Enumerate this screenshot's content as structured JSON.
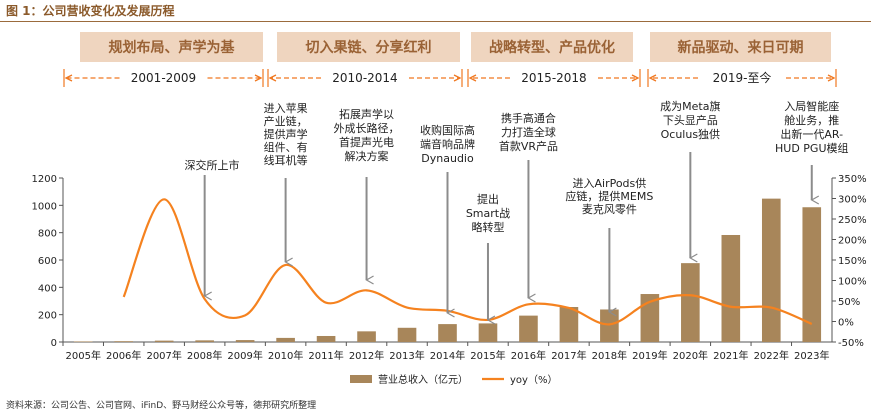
{
  "figure_title": "图 1：公司营收变化及发展历程",
  "source_note": "资料来源：公司公告、公司官网、iFinD、野马财经公众号等，德邦研究所整理",
  "colors": {
    "title": "#8B5A2B",
    "banner_fill": "#EFD5BF",
    "banner_text": "#9A6235",
    "bracket": "#F07820",
    "bar": "#A8865A",
    "line": "#F5821F",
    "arrow": "#8C8C8C",
    "text": "#222222"
  },
  "stages": [
    {
      "banner": "规划布局、声学为基",
      "period": "2001-2009"
    },
    {
      "banner": "切入果链、分享红利",
      "period": "2010-2014"
    },
    {
      "banner": "战略转型、产品优化",
      "period": "2015-2018"
    },
    {
      "banner": "新品驱动、来日可期",
      "period": "2019-至今"
    }
  ],
  "annotations": [
    {
      "year": "2008年",
      "lines": [
        "深交所上市"
      ]
    },
    {
      "year": "2010年",
      "lines": [
        "进入苹果",
        "产业链，",
        "提供声学",
        "组件、有",
        "线耳机等"
      ]
    },
    {
      "year": "2012年",
      "lines": [
        "拓展声学以",
        "外成长路径，",
        "首提声光电",
        "解决方案"
      ]
    },
    {
      "year": "2014年",
      "lines": [
        "收购国际高",
        "端音响品牌",
        "Dynaudio"
      ]
    },
    {
      "year": "2015年",
      "lines": [
        "提出",
        "Smart战",
        "略转型"
      ]
    },
    {
      "year": "2016年",
      "lines": [
        "携手高通合",
        "力打造全球",
        "首款VR产品"
      ]
    },
    {
      "year": "2018年",
      "lines": [
        "进入AirPods供",
        "应链，提供MEMS",
        "麦克风零件"
      ]
    },
    {
      "year": "2020年",
      "lines": [
        "成为Meta旗",
        "下头显产品",
        "Oculus独供"
      ]
    },
    {
      "year": "2023年",
      "lines": [
        "入局智能座",
        "舱业务，推",
        "出新一代AR-",
        "HUD PGU模组"
      ]
    }
  ],
  "chart_data": {
    "type": "bar",
    "categories": [
      "2005年",
      "2006年",
      "2007年",
      "2008年",
      "2009年",
      "2010年",
      "2011年",
      "2012年",
      "2013年",
      "2014年",
      "2015年",
      "2016年",
      "2017年",
      "2018年",
      "2019年",
      "2020年",
      "2021年",
      "2022年",
      "2023年"
    ],
    "series": [
      {
        "name": "营业总收入（亿元）",
        "type": "bar",
        "axis": "left",
        "values": [
          4,
          6,
          10,
          12,
          14,
          30,
          44,
          78,
          104,
          131,
          136,
          193,
          256,
          238,
          351,
          577,
          783,
          1049,
          986
        ]
      },
      {
        "name": "yoy（%）",
        "type": "line",
        "axis": "right",
        "values": [
          null,
          60,
          298,
          55,
          15,
          138,
          46,
          76,
          34,
          26,
          4,
          42,
          33,
          -7,
          48,
          64,
          36,
          34,
          -6
        ]
      }
    ],
    "y_left": {
      "min": 0,
      "max": 1200,
      "step": 200,
      "tick_labels": [
        "0",
        "200",
        "400",
        "600",
        "800",
        "1000",
        "1200"
      ]
    },
    "y_right": {
      "min": -50,
      "max": 350,
      "step": 50,
      "tick_labels": [
        "-50%",
        "0%",
        "50%",
        "100%",
        "150%",
        "200%",
        "250%",
        "300%",
        "350%"
      ]
    },
    "grid": false,
    "legend_position": "bottom-center",
    "legend": [
      {
        "label": "营业总收入（亿元）",
        "kind": "bar"
      },
      {
        "label": "yoy（%）",
        "kind": "line"
      }
    ]
  }
}
